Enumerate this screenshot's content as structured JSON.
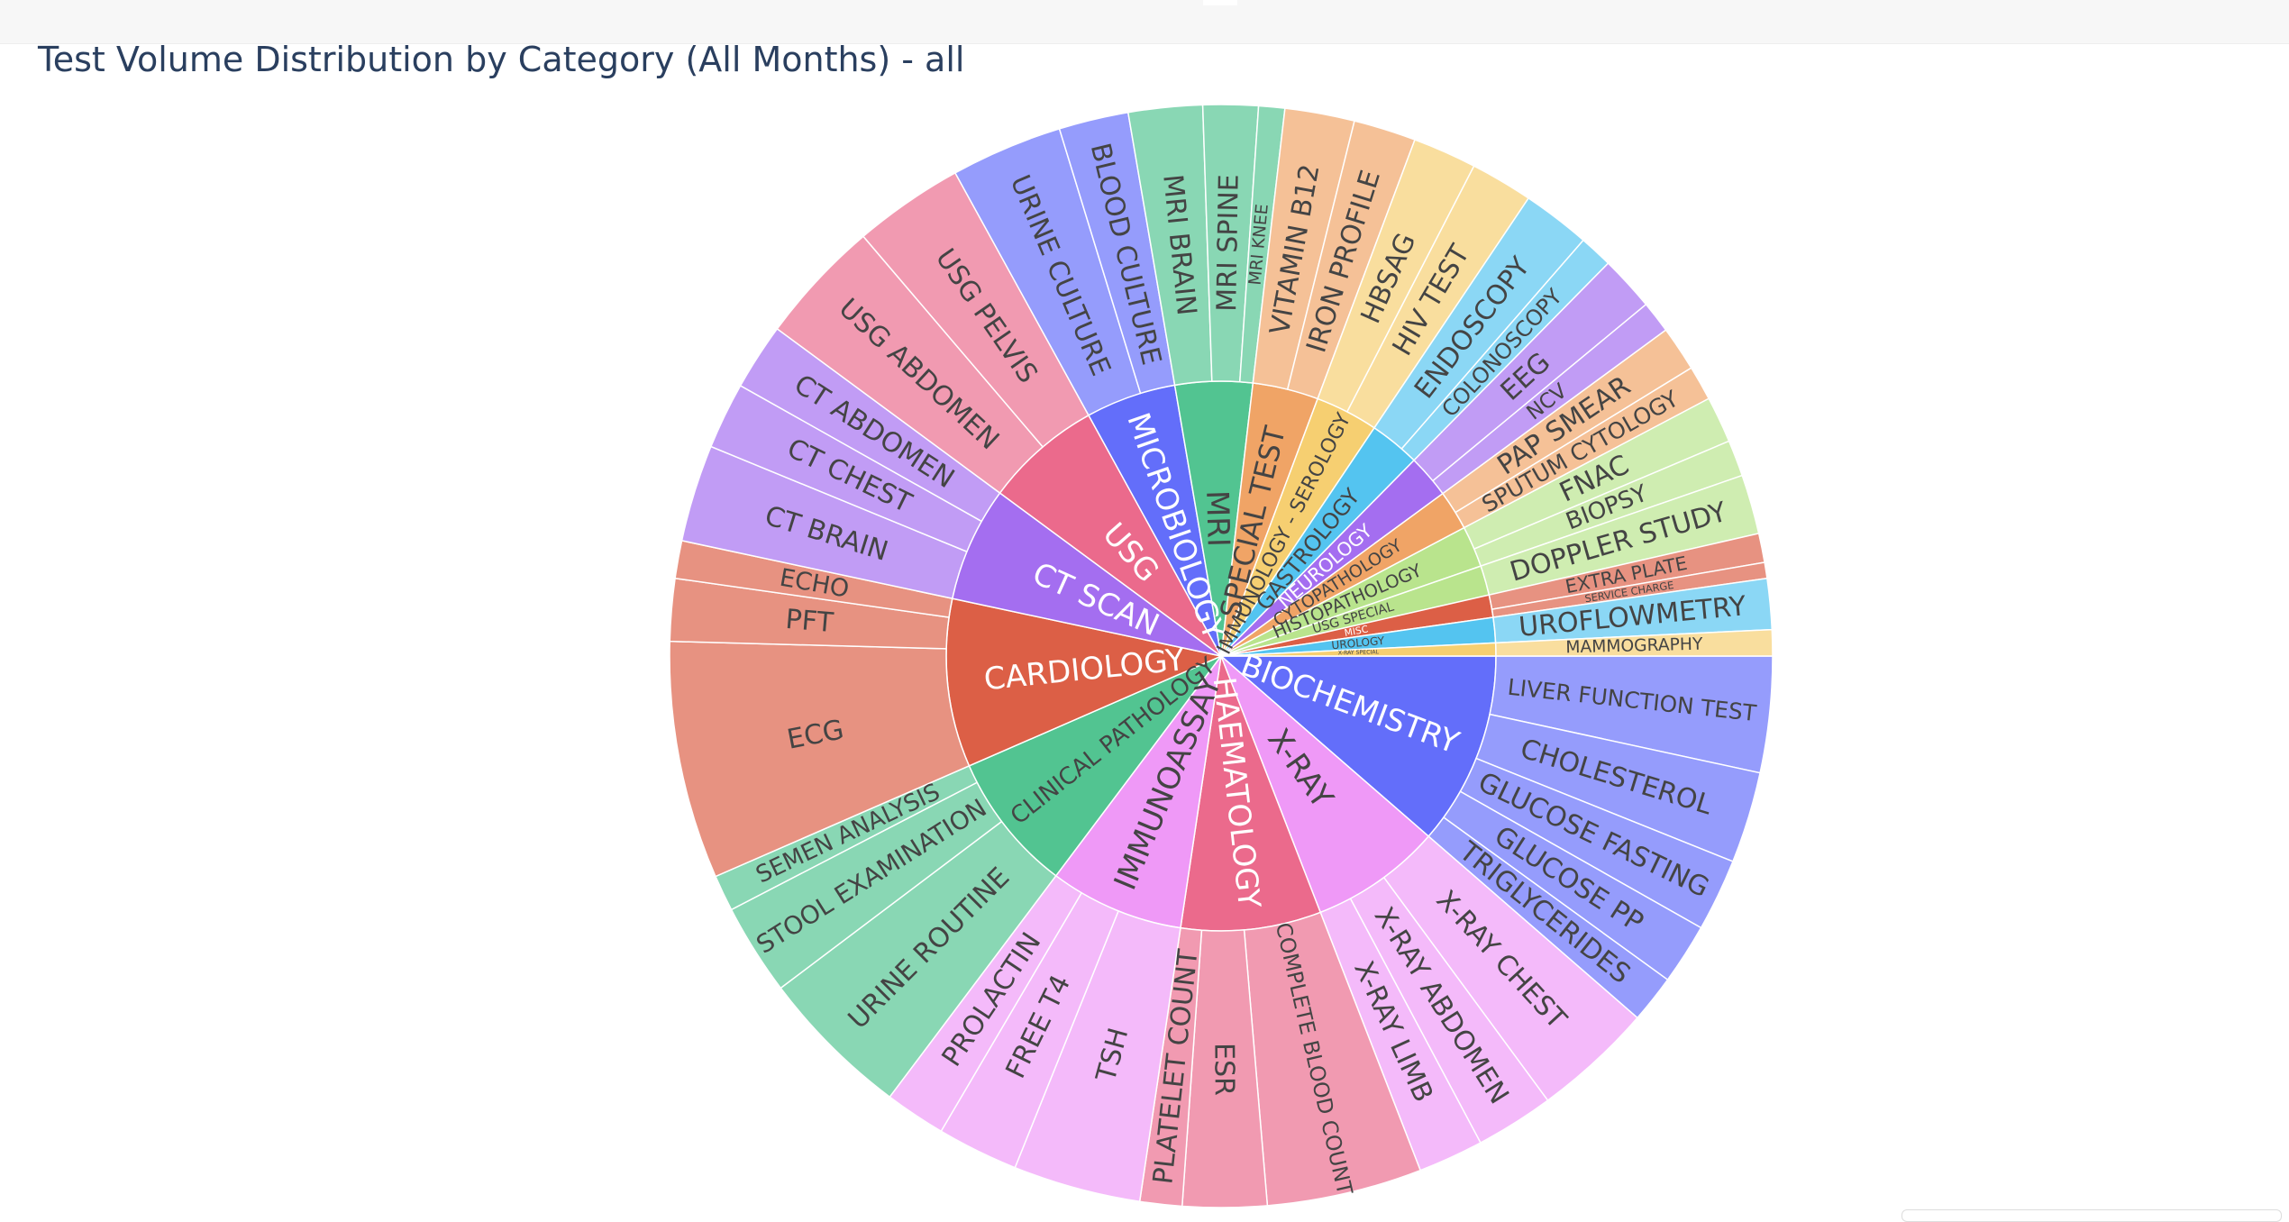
{
  "chart_data": {
    "type": "sunburst",
    "title": "Test Volume Distribution by Category (All Months) - all",
    "categories": [
      {
        "name": "BIOCHEMISTRY",
        "color": "#636efa",
        "children": [
          [
            "LIVER FUNCTION TEST",
            8
          ],
          [
            "CHOLESTEROL",
            6.3
          ],
          [
            "GLUCOSE FASTING",
            5
          ],
          [
            "GLUCOSE PP",
            4.2
          ],
          [
            "TRIGLYCERIDES",
            3.3
          ]
        ]
      },
      {
        "name": "X-RAY",
        "color": "#ef99f7",
        "children": [
          [
            "X-RAY CHEST",
            8.3
          ],
          [
            "X-RAY ABDOMEN",
            5.4
          ],
          [
            "X-RAY LIMB",
            4.5
          ]
        ]
      },
      {
        "name": "HAEMATOLOGY",
        "color": "#eb6a8c",
        "children": [
          [
            "COMPLETE BLOOD COUNT",
            10.7
          ],
          [
            "ESR",
            5.8
          ],
          [
            "PLATELET COUNT",
            2.9
          ]
        ]
      },
      {
        "name": "IMMUNOASSAY",
        "color": "#ef99f7",
        "children": [
          [
            "TSH",
            8.8
          ],
          [
            "FREE T4",
            5.6
          ],
          [
            "PROLACTIN",
            4.2
          ]
        ]
      },
      {
        "name": "CLINICAL PATHOLOGY",
        "color": "#52c491",
        "children": [
          [
            "URINE ROUTINE",
            10.5
          ],
          [
            "STOOL EXAMINATION",
            6.3
          ],
          [
            "SEMEN ANALYSIS",
            2.5
          ]
        ]
      },
      {
        "name": "CARDIOLOGY",
        "color": "#dc5f46",
        "children": [
          [
            "ECG",
            16.4
          ],
          [
            "PFT",
            4.3
          ],
          [
            "ECHO",
            2.6
          ]
        ]
      },
      {
        "name": "CT SCAN",
        "color": "#a46ef0",
        "children": [
          [
            "CT BRAIN",
            6.7
          ],
          [
            "CT CHEST",
            4.6
          ],
          [
            "CT ABDOMEN",
            4.6
          ]
        ]
      },
      {
        "name": "USG",
        "color": "#eb6a8c",
        "children": [
          [
            "USG ABDOMEN",
            8.6
          ],
          [
            "USG PELVIS",
            7.6
          ]
        ]
      },
      {
        "name": "MICROBIOLOGY",
        "color": "#636efa",
        "children": [
          [
            "URINE CULTURE",
            7.7
          ],
          [
            "BLOOD CULTURE",
            4.8
          ]
        ]
      },
      {
        "name": "MRI",
        "color": "#52c491",
        "children": [
          [
            "MRI BRAIN",
            5.1
          ],
          [
            "MRI SPINE",
            3.8
          ],
          [
            "MRI KNEE",
            1.8
          ]
        ]
      },
      {
        "name": "SPECIAL TEST",
        "color": "#f0a466",
        "children": [
          [
            "VITAMIN B12",
            4.8
          ],
          [
            "IRON PROFILE",
            4.3
          ]
        ]
      },
      {
        "name": "IMMUNOLOGY - SEROLOGY",
        "color": "#f6cf71",
        "children": [
          [
            "HBSAG",
            4.4
          ],
          [
            "HIV TEST",
            4.3
          ]
        ]
      },
      {
        "name": "GASTROLOGY",
        "color": "#54c4f0",
        "children": [
          [
            "ENDOSCOPY",
            4.7
          ],
          [
            "COLONOSCOPY",
            2.3
          ]
        ]
      },
      {
        "name": "NEUROLOGY",
        "color": "#a46ef0",
        "children": [
          [
            "EEG",
            3.8
          ],
          [
            "NCV",
            2.2
          ]
        ]
      },
      {
        "name": "CYTOPATHOLOGY",
        "color": "#f0a466",
        "children": [
          [
            "PAP SMEAR",
            3.1
          ],
          [
            "SPUTUM CYTOLOGY",
            2.4
          ]
        ]
      },
      {
        "name": "HISTOPATHOLOGY",
        "color": "#b9e48d",
        "children": [
          [
            "FNAC",
            3.2
          ],
          [
            "BIOPSY",
            2.5
          ]
        ]
      },
      {
        "name": "USG SPECIAL",
        "color": "#b9e48d",
        "children": [
          [
            "DOPPLER STUDY",
            4.1
          ]
        ]
      },
      {
        "name": "MISC",
        "color": "#dc5f46",
        "children": [
          [
            "EXTRA PLATE",
            2
          ],
          [
            "SERVICE CHARGE",
            1.1
          ]
        ]
      },
      {
        "name": "UROLOGY",
        "color": "#54c4f0",
        "children": [
          [
            "UROFLOWMETRY",
            3.5
          ]
        ]
      },
      {
        "name": "X-RAY SPECIAL",
        "color": "#f6cf71",
        "children": [
          [
            "MAMMOGRAPHY",
            1.8
          ]
        ]
      }
    ]
  }
}
